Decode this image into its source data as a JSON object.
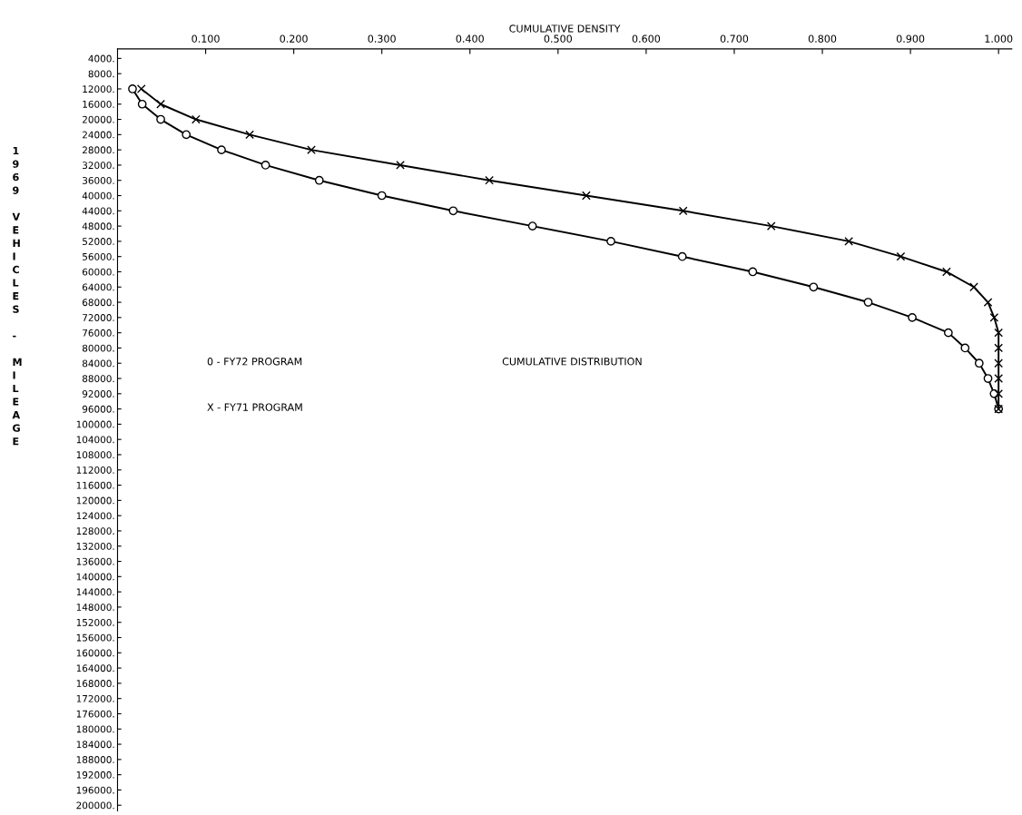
{
  "chart_data": {
    "type": "line",
    "xlabel": "CUMULATIVE DENSITY",
    "ylabel": "1969 VEHICLES - MILEAGE",
    "xlim": [
      0,
      1.015
    ],
    "ylim": [
      201500,
      1500
    ],
    "xticks": [
      {
        "value": 0.1,
        "label": "0.100"
      },
      {
        "value": 0.2,
        "label": "0.200"
      },
      {
        "value": 0.3,
        "label": "0.300"
      },
      {
        "value": 0.4,
        "label": "0.400"
      },
      {
        "value": 0.5,
        "label": "0.500"
      },
      {
        "value": 0.6,
        "label": "0.600"
      },
      {
        "value": 0.7,
        "label": "0.700"
      },
      {
        "value": 0.8,
        "label": "0.800"
      },
      {
        "value": 0.9,
        "label": "0.900"
      },
      {
        "value": 1.0,
        "label": "1.000"
      }
    ],
    "yticks": [
      {
        "value": 4000,
        "label": "4000."
      },
      {
        "value": 8000,
        "label": "8000."
      },
      {
        "value": 12000,
        "label": "12000."
      },
      {
        "value": 16000,
        "label": "16000."
      },
      {
        "value": 20000,
        "label": "20000."
      },
      {
        "value": 24000,
        "label": "24000."
      },
      {
        "value": 28000,
        "label": "28000."
      },
      {
        "value": 32000,
        "label": "32000."
      },
      {
        "value": 36000,
        "label": "36000."
      },
      {
        "value": 40000,
        "label": "40000."
      },
      {
        "value": 44000,
        "label": "44000."
      },
      {
        "value": 48000,
        "label": "48000."
      },
      {
        "value": 52000,
        "label": "52000."
      },
      {
        "value": 56000,
        "label": "56000."
      },
      {
        "value": 60000,
        "label": "60000."
      },
      {
        "value": 64000,
        "label": "64000."
      },
      {
        "value": 68000,
        "label": "68000."
      },
      {
        "value": 72000,
        "label": "72000."
      },
      {
        "value": 76000,
        "label": "76000."
      },
      {
        "value": 80000,
        "label": "80000."
      },
      {
        "value": 84000,
        "label": "84000."
      },
      {
        "value": 88000,
        "label": "88000."
      },
      {
        "value": 92000,
        "label": "92000."
      },
      {
        "value": 96000,
        "label": "96000."
      },
      {
        "value": 100000,
        "label": "100000."
      },
      {
        "value": 104000,
        "label": "104000."
      },
      {
        "value": 108000,
        "label": "108000."
      },
      {
        "value": 112000,
        "label": "112000."
      },
      {
        "value": 116000,
        "label": "116000."
      },
      {
        "value": 120000,
        "label": "120000."
      },
      {
        "value": 124000,
        "label": "124000."
      },
      {
        "value": 128000,
        "label": "128000."
      },
      {
        "value": 132000,
        "label": "132000."
      },
      {
        "value": 136000,
        "label": "136000."
      },
      {
        "value": 140000,
        "label": "140000."
      },
      {
        "value": 144000,
        "label": "144000."
      },
      {
        "value": 148000,
        "label": "148000."
      },
      {
        "value": 152000,
        "label": "152000."
      },
      {
        "value": 156000,
        "label": "156000."
      },
      {
        "value": 160000,
        "label": "160000."
      },
      {
        "value": 164000,
        "label": "164000."
      },
      {
        "value": 168000,
        "label": "168000."
      },
      {
        "value": 172000,
        "label": "172000."
      },
      {
        "value": 176000,
        "label": "176000."
      },
      {
        "value": 180000,
        "label": "180000."
      },
      {
        "value": 184000,
        "label": "184000."
      },
      {
        "value": 188000,
        "label": "188000."
      },
      {
        "value": 192000,
        "label": "192000."
      },
      {
        "value": 196000,
        "label": "196000."
      },
      {
        "value": 200000,
        "label": "200000."
      }
    ],
    "series": [
      {
        "color": "#000000",
        "marker": "circle",
        "x": [
          0.017,
          0.028,
          0.049,
          0.078,
          0.118,
          0.168,
          0.229,
          0.3,
          0.381,
          0.471,
          0.56,
          0.641,
          0.721,
          0.79,
          0.852,
          0.902,
          0.943,
          0.962,
          0.978,
          0.988,
          0.995,
          1.0
        ],
        "values": [
          12000,
          16000,
          20000,
          24000,
          28000,
          32000,
          36000,
          40000,
          44000,
          48000,
          52000,
          56000,
          60000,
          64000,
          68000,
          72000,
          76000,
          80000,
          84000,
          88000,
          92000,
          96000
        ]
      },
      {
        "color": "#000000",
        "marker": "cross",
        "x": [
          0.027,
          0.049,
          0.089,
          0.15,
          0.22,
          0.321,
          0.422,
          0.532,
          0.642,
          0.742,
          0.83,
          0.889,
          0.941,
          0.972,
          0.988,
          0.995,
          1.0,
          1.0,
          1.0,
          1.0,
          1.0,
          1.0
        ],
        "values": [
          12000,
          16000,
          20000,
          24000,
          28000,
          32000,
          36000,
          40000,
          44000,
          48000,
          52000,
          56000,
          60000,
          64000,
          68000,
          72000,
          76000,
          80000,
          84000,
          88000,
          92000,
          96000
        ]
      }
    ],
    "grid": false,
    "annotations": [
      "0 - FY72 PROGRAM",
      "CUMULATIVE DISTRIBUTION",
      "X - FY71 PROGRAM"
    ]
  }
}
